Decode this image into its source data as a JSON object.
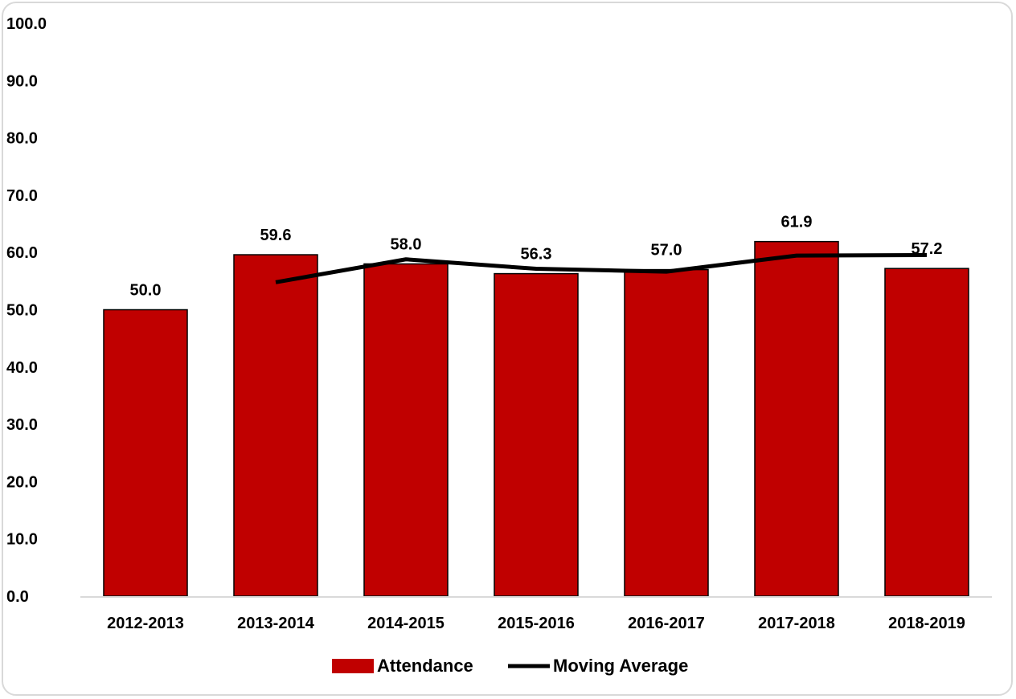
{
  "chart_data": {
    "type": "bar",
    "title": "",
    "xlabel": "",
    "ylabel": "",
    "categories": [
      "2012-2013",
      "2013-2014",
      "2014-2015",
      "2015-2016",
      "2016-2017",
      "2017-2018",
      "2018-2019"
    ],
    "series": [
      {
        "name": "Attendance",
        "type": "bar",
        "color": "#c00000",
        "values": [
          50.0,
          59.6,
          58.0,
          56.3,
          57.0,
          61.9,
          57.2
        ]
      },
      {
        "name": "Moving Average",
        "type": "line",
        "color": "#000000",
        "values": [
          null,
          54.8,
          58.8,
          57.15,
          56.65,
          59.45,
          59.55
        ]
      }
    ],
    "data_labels": [
      "50.0",
      "59.6",
      "58.0",
      "56.3",
      "57.0",
      "61.9",
      "57.2"
    ],
    "ylim": [
      0,
      100
    ],
    "yticks": [
      "0.0",
      "10.0",
      "20.0",
      "30.0",
      "40.0",
      "50.0",
      "60.0",
      "70.0",
      "80.0",
      "90.0",
      "100.0"
    ],
    "grid": false,
    "legend_position": "bottom"
  }
}
